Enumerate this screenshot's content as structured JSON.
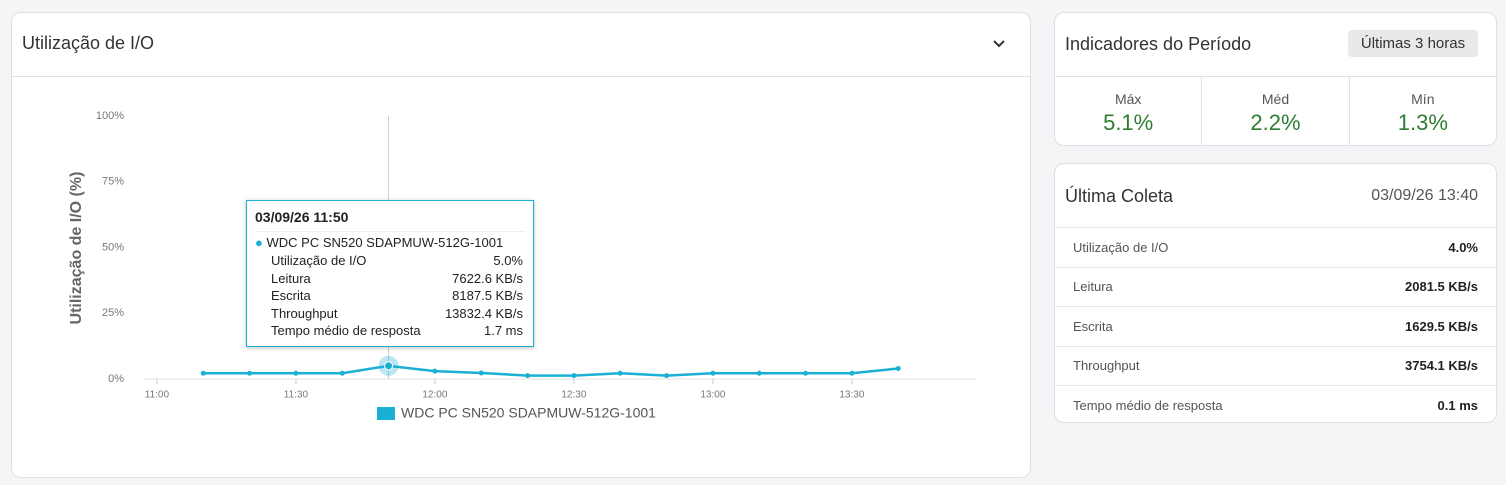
{
  "panel": {
    "title": "Utilização de I/O"
  },
  "chart_data": {
    "type": "line",
    "y_label": "Utilização de I/O (%)",
    "x": [
      "11:10",
      "11:20",
      "11:30",
      "11:40",
      "11:50",
      "12:00",
      "12:10",
      "12:20",
      "12:30",
      "12:40",
      "12:50",
      "13:00",
      "13:10",
      "13:20",
      "13:30",
      "13:40"
    ],
    "xlim": [
      "10:57",
      "13:57"
    ],
    "xticks": [
      "11:00",
      "11:30",
      "12:00",
      "12:30",
      "13:00",
      "13:30"
    ],
    "ylim": [
      0,
      100
    ],
    "yticks": [
      {
        "value": 0,
        "label": "0%"
      },
      {
        "value": 25,
        "label": "25%"
      },
      {
        "value": 50,
        "label": "50%"
      },
      {
        "value": 75,
        "label": "75%"
      },
      {
        "value": 100,
        "label": "100%"
      }
    ],
    "series": [
      {
        "name": "WDC PC SN520 SDAPMUW-512G-1001",
        "color": "#1ab0d5",
        "values": [
          2.2,
          2.2,
          2.2,
          2.2,
          5.0,
          3.0,
          2.3,
          1.3,
          1.3,
          2.2,
          1.3,
          2.2,
          2.2,
          2.2,
          2.2,
          4.0
        ]
      }
    ],
    "highlight_index": 4
  },
  "tooltip": {
    "title": "03/09/26 11:50",
    "rows": [
      [
        "Utilização de I/O",
        "5.0%"
      ],
      [
        "Leitura",
        "7622.6 KB/s"
      ],
      [
        "Escrita",
        "8187.5 KB/s"
      ],
      [
        "Throughput",
        "13832.4 KB/s"
      ],
      [
        "Tempo médio de resposta",
        "1.7 ms"
      ]
    ]
  },
  "indicators": {
    "title": "Indicadores do Período",
    "period": "Últimas 3 horas",
    "items": [
      {
        "label": "Máx",
        "value": "5.1%"
      },
      {
        "label": "Méd",
        "value": "2.2%"
      },
      {
        "label": "Mín",
        "value": "1.3%"
      }
    ]
  },
  "last_collection": {
    "title": "Última Coleta",
    "date": "03/09/26 13:40",
    "rows": [
      [
        "Utilização de I/O",
        "4.0%"
      ],
      [
        "Leitura",
        "2081.5 KB/s"
      ],
      [
        "Escrita",
        "1629.5 KB/s"
      ],
      [
        "Throughput",
        "3754.1 KB/s"
      ],
      [
        "Tempo médio de resposta",
        "0.1 ms"
      ]
    ]
  }
}
